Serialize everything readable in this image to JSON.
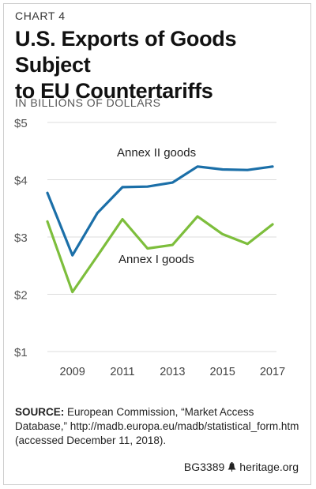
{
  "header": {
    "kicker": "CHART 4",
    "title_line1": "U.S. Exports of Goods Subject",
    "title_line2": "to EU Countertariffs",
    "unit": "IN BILLIONS OF DOLLARS"
  },
  "chart_data": {
    "type": "line",
    "xlim": [
      2008,
      2017
    ],
    "ylim": [
      1,
      5
    ],
    "y_ticks": [
      1,
      2,
      3,
      4,
      5
    ],
    "y_tick_labels": [
      "$1",
      "$2",
      "$3",
      "$4",
      "$5"
    ],
    "x_ticks": [
      2009,
      2011,
      2013,
      2015,
      2017
    ],
    "x_tick_labels": [
      "2009",
      "2011",
      "2013",
      "2015",
      "2017"
    ],
    "grid": "horizontal",
    "x": [
      2008,
      2009,
      2010,
      2011,
      2012,
      2013,
      2014,
      2015,
      2016,
      2017
    ],
    "series": [
      {
        "name": "Annex II goods",
        "color": "#1b6fa8",
        "values": [
          3.77,
          2.68,
          3.42,
          3.87,
          3.88,
          3.95,
          4.23,
          4.18,
          4.17,
          4.23
        ]
      },
      {
        "name": "Annex I goods",
        "color": "#7dbe3c",
        "values": [
          3.27,
          2.04,
          2.67,
          3.31,
          2.8,
          2.86,
          3.36,
          3.05,
          2.88,
          3.22
        ]
      }
    ]
  },
  "source": {
    "label": "SOURCE:",
    "text": " European Commission, “Market Access Database,” http://madb.europa.eu/madb/statistical_form.htm (accessed December 11, 2018)."
  },
  "footer": {
    "report_id": "BG3389",
    "site": "heritage.org",
    "logo_icon": "liberty-bell-icon"
  }
}
